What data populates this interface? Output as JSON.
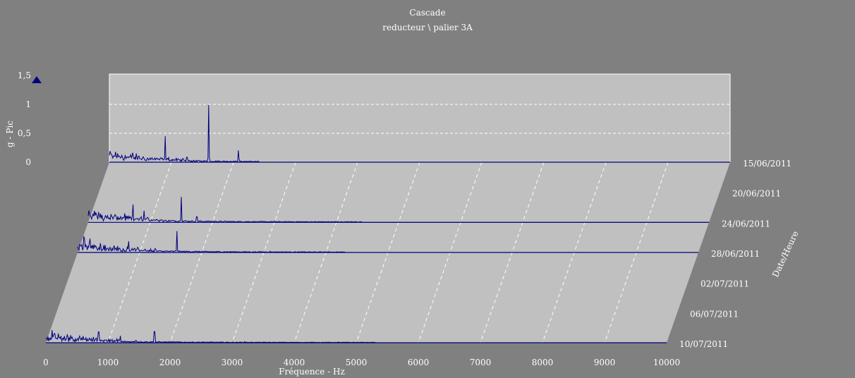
{
  "chart_data": {
    "type": "waterfall",
    "title": "Cascade",
    "subtitle": "reducteur \\ palier 3A",
    "xlabel": "Fréquence - Hz",
    "ylabel": "g - Pic",
    "zlabel": "Date/Heure",
    "xlim": [
      0,
      10000
    ],
    "ylim": [
      0,
      1.5
    ],
    "x_ticks": [
      "0",
      "1000",
      "2000",
      "3000",
      "4000",
      "5000",
      "6000",
      "7000",
      "8000",
      "9000",
      "10000"
    ],
    "y_ticks": [
      "0",
      "0,5",
      "1",
      "1,5"
    ],
    "z_ticks": [
      "15/06/2011",
      "20/06/2011",
      "24/06/2011",
      "28/06/2011",
      "02/07/2011",
      "06/07/2011",
      "10/07/2011"
    ],
    "grid": true,
    "colors": {
      "background": "#808080",
      "wall": "#c0c0c0",
      "floor": "#c0c0c0",
      "spectrum": "#000080",
      "grid": "#ffffff",
      "text": "#ffffff"
    },
    "series": [
      {
        "date": "15/06/2011",
        "max_freq": 2400,
        "noise_level": 0.03,
        "peaks": [
          [
            100,
            0.18
          ],
          [
            200,
            0.12
          ],
          [
            380,
            0.2
          ],
          [
            450,
            0.09
          ],
          [
            900,
            0.45
          ],
          [
            1250,
            0.16
          ],
          [
            1600,
            0.99
          ],
          [
            2080,
            0.25
          ]
        ]
      },
      {
        "date": "24/06/2011",
        "max_freq": 4400,
        "noise_level": 0.035,
        "peaks": [
          [
            100,
            0.2
          ],
          [
            200,
            0.15
          ],
          [
            380,
            0.13
          ],
          [
            720,
            0.38
          ],
          [
            900,
            0.2
          ],
          [
            1500,
            0.44
          ],
          [
            1750,
            0.18
          ]
        ]
      },
      {
        "date": "28/06/2011",
        "max_freq": 4300,
        "noise_level": 0.03,
        "peaks": [
          [
            100,
            0.28
          ],
          [
            200,
            0.24
          ],
          [
            380,
            0.11
          ],
          [
            820,
            0.24
          ],
          [
            1250,
            0.12
          ],
          [
            1600,
            0.37
          ],
          [
            3100,
            0.02
          ]
        ]
      },
      {
        "date": "10/07/2011",
        "max_freq": 5300,
        "noise_level": 0.025,
        "peaks": [
          [
            100,
            0.22
          ],
          [
            200,
            0.16
          ],
          [
            400,
            0.13
          ],
          [
            850,
            0.35
          ],
          [
            1200,
            0.12
          ],
          [
            1450,
            0.07
          ],
          [
            1750,
            0.36
          ],
          [
            3200,
            0.02
          ]
        ]
      }
    ]
  }
}
